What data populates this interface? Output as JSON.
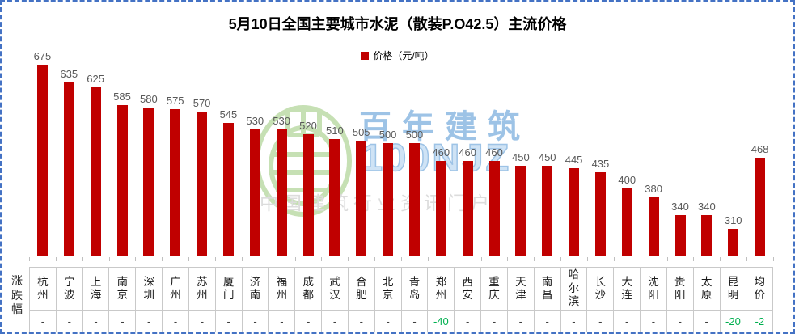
{
  "frame": {
    "border_color": "#4472C4",
    "background": "#FFFFFF"
  },
  "title": "5月10日全国主要城市水泥（散装P.O42.5）主流价格",
  "legend": {
    "label": "价格（元/吨）",
    "swatch_color": "#C00000"
  },
  "row_label": "涨跌幅",
  "chart_data": {
    "type": "bar",
    "title": "5月10日全国主要城市水泥（散装P.O42.5）主流价格",
    "series_name": "价格（元/吨）",
    "categories": [
      "杭州",
      "宁波",
      "上海",
      "南京",
      "深圳",
      "广州",
      "苏州",
      "厦门",
      "济南",
      "福州",
      "成都",
      "武汉",
      "合肥",
      "北京",
      "青岛",
      "郑州",
      "西安",
      "重庆",
      "天津",
      "南昌",
      "哈尔滨",
      "长沙",
      "大连",
      "沈阳",
      "贵阳",
      "太原",
      "昆明",
      "均价"
    ],
    "values": [
      675,
      635,
      625,
      585,
      580,
      575,
      570,
      545,
      530,
      530,
      520,
      510,
      505,
      500,
      500,
      460,
      460,
      460,
      450,
      450,
      445,
      435,
      400,
      380,
      340,
      340,
      310,
      468
    ],
    "changes": [
      "-",
      "-",
      "-",
      "-",
      "-",
      "-",
      "-",
      "-",
      "-",
      "-",
      "-",
      "-",
      "-",
      "-",
      "-",
      "-40",
      "-",
      "-",
      "-",
      "-",
      "-",
      "-",
      "-",
      "-",
      "-",
      "-",
      "-20",
      "-2"
    ],
    "ylim": [
      250,
      700
    ],
    "grid": false,
    "legend_position": "top",
    "bar_color": "#C00000",
    "value_label_color": "#595959",
    "negative_change_color": "#00B050"
  },
  "watermark": {
    "brand": "百年建筑",
    "brand_latin": "100NJZ",
    "tagline": "中国建筑行业资讯门户",
    "blue": "#9DC3E6",
    "green": "#C6E0B4",
    "gray": "#DCDCDC"
  }
}
